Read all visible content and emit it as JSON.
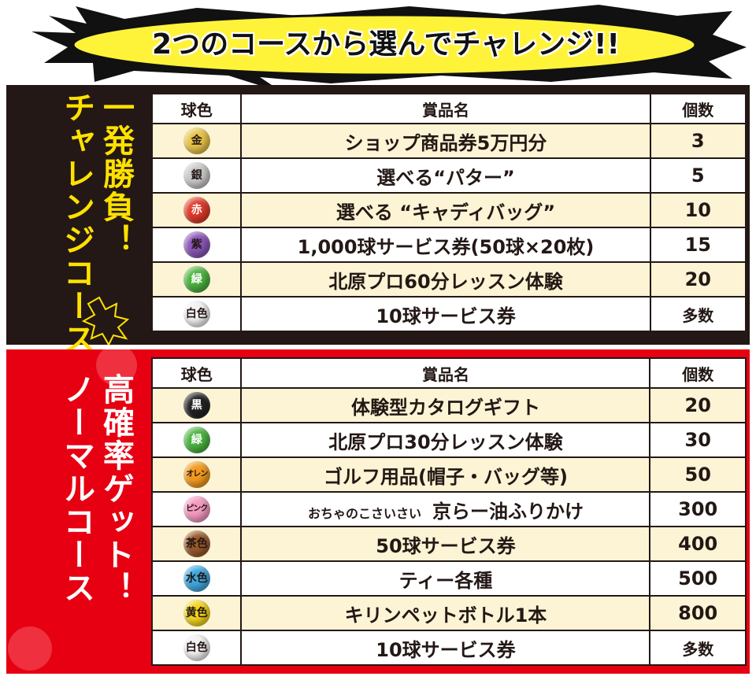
{
  "banner": {
    "title": "2つのコースから選んでチャレンジ!!"
  },
  "challenge": {
    "title_cols": [
      "一発勝負！",
      "チャレンジコース"
    ],
    "headers": {
      "ball": "球色",
      "prize": "賞品名",
      "count": "個数"
    },
    "rows": [
      {
        "ball": "金",
        "ball_color": "#e8c44a",
        "prize": "ショップ商品券5万円分",
        "count": "3"
      },
      {
        "ball": "銀",
        "ball_color": "#c9c9c9",
        "prize": "選べる“パター”",
        "count": "5"
      },
      {
        "ball": "赤",
        "ball_color": "#e03a2a",
        "prize": "選べる “キャディバッグ”",
        "count": "10"
      },
      {
        "ball": "紫",
        "ball_color": "#8a56b8",
        "prize": "1,000球サービス券(50球×20枚)",
        "count": "15"
      },
      {
        "ball": "緑",
        "ball_color": "#4bb33f",
        "prize": "北原プロ60分レッスン体験",
        "count": "20"
      },
      {
        "ball": "白色",
        "ball_color": "#f2f2f2",
        "prize": "10球サービス券",
        "count": "多数"
      }
    ]
  },
  "normal": {
    "title_cols": [
      "高確率ゲット！",
      "ノーマルコース"
    ],
    "headers": {
      "ball": "球色",
      "prize": "賞品名",
      "count": "個数"
    },
    "rows": [
      {
        "ball": "黒",
        "ball_color": "#222222",
        "prize": "体験型カタログギフト",
        "count": "20"
      },
      {
        "ball": "緑",
        "ball_color": "#4bb33f",
        "prize": "北原プロ30分レッスン体験",
        "count": "30"
      },
      {
        "ball": "オレンジ",
        "ball_color": "#f39a1e",
        "prize": "ゴルフ用品(帽子・バッグ等)",
        "count": "50"
      },
      {
        "ball": "ピンク",
        "ball_color": "#f59ac0",
        "prize_sub": "おちゃのこさいさい",
        "prize": "京らー油ふりかけ",
        "count": "300"
      },
      {
        "ball": "茶色",
        "ball_color": "#9a5a2a",
        "prize": "50球サービス券",
        "count": "400"
      },
      {
        "ball": "水色",
        "ball_color": "#3fa9e0",
        "prize": "ティー各種",
        "count": "500"
      },
      {
        "ball": "黄色",
        "ball_color": "#f5d51c",
        "prize": "キリンペットボトル1本",
        "count": "800"
      },
      {
        "ball": "白色",
        "ball_color": "#f2f2f2",
        "prize": "10球サービス券",
        "count": "多数"
      }
    ]
  }
}
